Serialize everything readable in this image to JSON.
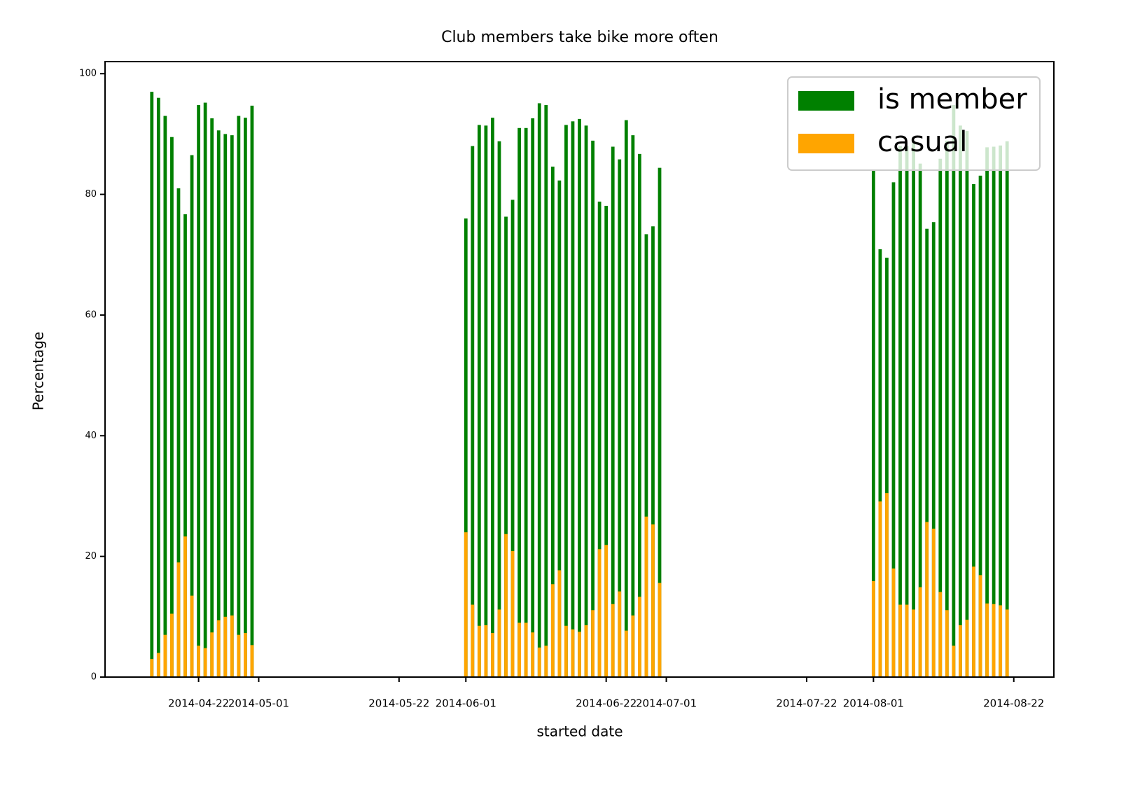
{
  "chart_data": {
    "type": "bar",
    "title": "Club members take bike more often",
    "xlabel": "started date",
    "ylabel": "Percentage",
    "x": [
      "2014-04-15",
      "2014-04-16",
      "2014-04-17",
      "2014-04-18",
      "2014-04-19",
      "2014-04-20",
      "2014-04-21",
      "2014-04-22",
      "2014-04-23",
      "2014-04-24",
      "2014-04-25",
      "2014-04-26",
      "2014-04-27",
      "2014-04-28",
      "2014-04-29",
      "2014-04-30",
      "2014-06-01",
      "2014-06-02",
      "2014-06-03",
      "2014-06-04",
      "2014-06-05",
      "2014-06-06",
      "2014-06-07",
      "2014-06-08",
      "2014-06-09",
      "2014-06-10",
      "2014-06-11",
      "2014-06-12",
      "2014-06-13",
      "2014-06-14",
      "2014-06-15",
      "2014-06-16",
      "2014-06-17",
      "2014-06-18",
      "2014-06-19",
      "2014-06-20",
      "2014-06-21",
      "2014-06-22",
      "2014-06-23",
      "2014-06-24",
      "2014-06-25",
      "2014-06-26",
      "2014-06-27",
      "2014-06-28",
      "2014-06-29",
      "2014-06-30",
      "2014-08-01",
      "2014-08-02",
      "2014-08-03",
      "2014-08-04",
      "2014-08-05",
      "2014-08-06",
      "2014-08-07",
      "2014-08-08",
      "2014-08-09",
      "2014-08-10",
      "2014-08-11",
      "2014-08-12",
      "2014-08-13",
      "2014-08-14",
      "2014-08-15",
      "2014-08-16",
      "2014-08-17",
      "2014-08-18",
      "2014-08-19",
      "2014-08-20",
      "2014-08-21"
    ],
    "series": [
      {
        "name": "is member",
        "color": "green",
        "values": [
          97,
          96,
          93,
          89.5,
          81,
          76.7,
          86.5,
          94.8,
          95.2,
          92.6,
          90.6,
          90,
          89.8,
          93,
          92.7,
          94.7,
          76,
          88,
          91.5,
          91.4,
          92.7,
          88.8,
          76.3,
          79.1,
          91,
          91,
          92.6,
          95.1,
          94.8,
          84.6,
          82.3,
          91.5,
          92.1,
          92.5,
          91.4,
          88.9,
          78.8,
          78.1,
          87.9,
          85.8,
          92.3,
          89.8,
          86.7,
          73.4,
          74.7,
          84.4,
          84.1,
          70.9,
          69.5,
          82,
          88,
          88,
          88.8,
          85.1,
          74.3,
          75.4,
          85.9,
          88.9,
          94.8,
          91.4,
          90.5,
          81.7,
          83.1,
          87.8,
          87.9,
          88.1,
          88.8
        ]
      },
      {
        "name": "casual",
        "color": "orange",
        "values": [
          3,
          4,
          7,
          10.5,
          19,
          23.3,
          13.5,
          5.2,
          4.8,
          7.4,
          9.4,
          10,
          10.2,
          7,
          7.3,
          5.3,
          24,
          12,
          8.5,
          8.6,
          7.3,
          11.2,
          23.7,
          20.9,
          9,
          9,
          7.4,
          4.9,
          5.2,
          15.4,
          17.7,
          8.5,
          7.9,
          7.5,
          8.6,
          11.1,
          21.2,
          21.9,
          12.1,
          14.2,
          7.7,
          10.2,
          13.3,
          26.6,
          25.3,
          15.6,
          15.9,
          29.1,
          30.5,
          18,
          12,
          12,
          11.2,
          14.9,
          25.7,
          24.6,
          14.1,
          11.1,
          5.2,
          8.6,
          9.5,
          18.3,
          16.9,
          12.2,
          12.1,
          11.9,
          11.2
        ]
      }
    ],
    "xlim": [
      "2014-04-08",
      "2014-08-28"
    ],
    "xticks": [
      "2014-04-22",
      "2014-05-01",
      "2014-05-22",
      "2014-06-01",
      "2014-06-22",
      "2014-07-01",
      "2014-07-22",
      "2014-08-01",
      "2014-08-22"
    ],
    "ylim": [
      0,
      102
    ],
    "yticks": [
      0,
      20,
      40,
      60,
      80,
      100
    ],
    "legend": "upper right"
  }
}
